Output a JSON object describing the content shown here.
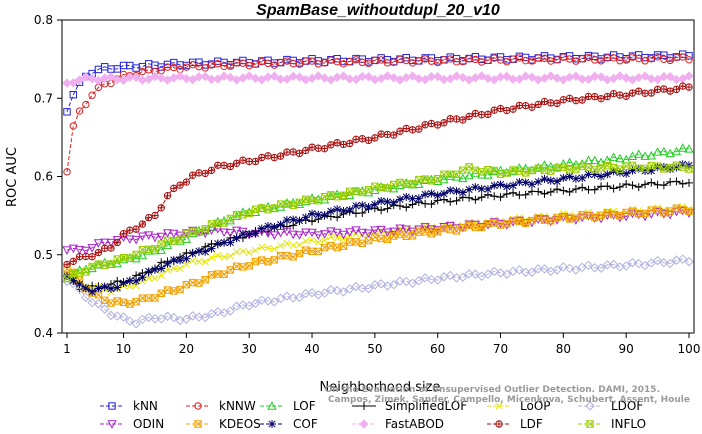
{
  "chart_data": {
    "type": "line",
    "title": "SpamBase_withoutdupl_20_v10",
    "xlabel": "Neighborhood size",
    "ylabel": "ROC AUC",
    "xlim": [
      1,
      100
    ],
    "ylim": [
      0.4,
      0.8
    ],
    "xticks": [
      1,
      10,
      20,
      30,
      40,
      50,
      60,
      70,
      80,
      90,
      100
    ],
    "yticks": [
      0.4,
      0.5,
      0.6,
      0.7,
      0.8
    ],
    "grid": false,
    "legend_position": "bottom",
    "watermark": "Campos, Zimek, Sander, Campello, Micenkova, Schubert, Assent, Houle. On the Evaluation of Unsupervised Outlier Detection. DAMI, 2015.",
    "watermark_lines": [
      "Campos, Zimek, Sander, Campello, Micenkova, Schubert, Assent, Houle",
      "On the Evaluation of Unsupervised Outlier Detection. DAMI, 2015."
    ],
    "series": [
      {
        "name": "kNN",
        "color": "#2222dd",
        "marker": "square",
        "dash": "4,2",
        "anchors": [
          [
            1,
            0.685
          ],
          [
            2,
            0.705
          ],
          [
            3,
            0.718
          ],
          [
            4,
            0.728
          ],
          [
            5,
            0.734
          ],
          [
            7,
            0.738
          ],
          [
            10,
            0.74
          ],
          [
            15,
            0.742
          ],
          [
            20,
            0.744
          ],
          [
            30,
            0.746
          ],
          [
            40,
            0.748
          ],
          [
            50,
            0.749
          ],
          [
            60,
            0.75
          ],
          [
            70,
            0.751
          ],
          [
            80,
            0.752
          ],
          [
            90,
            0.753
          ],
          [
            100,
            0.754
          ]
        ]
      },
      {
        "name": "kNNW",
        "color": "#dd2222",
        "marker": "circle",
        "dash": "4,2",
        "anchors": [
          [
            1,
            0.608
          ],
          [
            2,
            0.663
          ],
          [
            3,
            0.682
          ],
          [
            4,
            0.694
          ],
          [
            5,
            0.705
          ],
          [
            7,
            0.718
          ],
          [
            10,
            0.728
          ],
          [
            15,
            0.736
          ],
          [
            20,
            0.74
          ],
          [
            30,
            0.744
          ],
          [
            40,
            0.746
          ],
          [
            50,
            0.747
          ],
          [
            60,
            0.748
          ],
          [
            70,
            0.749
          ],
          [
            80,
            0.75
          ],
          [
            90,
            0.75
          ],
          [
            100,
            0.751
          ]
        ]
      },
      {
        "name": "LOF",
        "color": "#22cc22",
        "marker": "triangle-up",
        "dash": "4,2",
        "anchors": [
          [
            1,
            0.472
          ],
          [
            3,
            0.478
          ],
          [
            5,
            0.485
          ],
          [
            10,
            0.492
          ],
          [
            15,
            0.505
          ],
          [
            20,
            0.522
          ],
          [
            25,
            0.54
          ],
          [
            30,
            0.555
          ],
          [
            40,
            0.57
          ],
          [
            50,
            0.583
          ],
          [
            60,
            0.596
          ],
          [
            70,
            0.606
          ],
          [
            80,
            0.615
          ],
          [
            90,
            0.624
          ],
          [
            100,
            0.635
          ]
        ]
      },
      {
        "name": "SimplifiedLOF",
        "color": "#000000",
        "marker": "plus",
        "dash": "",
        "anchors": [
          [
            1,
            0.472
          ],
          [
            3,
            0.458
          ],
          [
            5,
            0.458
          ],
          [
            8,
            0.462
          ],
          [
            10,
            0.466
          ],
          [
            13,
            0.475
          ],
          [
            16,
            0.488
          ],
          [
            20,
            0.5
          ],
          [
            25,
            0.515
          ],
          [
            30,
            0.526
          ],
          [
            40,
            0.545
          ],
          [
            50,
            0.558
          ],
          [
            60,
            0.568
          ],
          [
            70,
            0.576
          ],
          [
            80,
            0.582
          ],
          [
            90,
            0.588
          ],
          [
            100,
            0.593
          ]
        ]
      },
      {
        "name": "LoOP",
        "color": "#e6e600",
        "marker": "cross",
        "dash": "4,2",
        "anchors": [
          [
            1,
            0.478
          ],
          [
            3,
            0.465
          ],
          [
            5,
            0.458
          ],
          [
            8,
            0.455
          ],
          [
            10,
            0.458
          ],
          [
            13,
            0.465
          ],
          [
            16,
            0.475
          ],
          [
            20,
            0.488
          ],
          [
            25,
            0.497
          ],
          [
            30,
            0.505
          ],
          [
            40,
            0.517
          ],
          [
            50,
            0.528
          ],
          [
            60,
            0.536
          ],
          [
            70,
            0.543
          ],
          [
            80,
            0.55
          ],
          [
            90,
            0.555
          ],
          [
            100,
            0.56
          ]
        ]
      },
      {
        "name": "LDOF",
        "color": "#b0b0e0",
        "marker": "diamond",
        "dash": "4,2",
        "anchors": [
          [
            1,
            0.468
          ],
          [
            3,
            0.455
          ],
          [
            5,
            0.44
          ],
          [
            8,
            0.425
          ],
          [
            10,
            0.418
          ],
          [
            12,
            0.414
          ],
          [
            15,
            0.42
          ],
          [
            20,
            0.418
          ],
          [
            25,
            0.425
          ],
          [
            30,
            0.437
          ],
          [
            40,
            0.45
          ],
          [
            50,
            0.46
          ],
          [
            60,
            0.47
          ],
          [
            70,
            0.477
          ],
          [
            80,
            0.482
          ],
          [
            90,
            0.487
          ],
          [
            100,
            0.493
          ]
        ]
      },
      {
        "name": "ODIN",
        "color": "#aa22cc",
        "marker": "triangle-down",
        "dash": "4,2",
        "anchors": [
          [
            1,
            0.508
          ],
          [
            3,
            0.505
          ],
          [
            5,
            0.51
          ],
          [
            8,
            0.518
          ],
          [
            10,
            0.52
          ],
          [
            15,
            0.524
          ],
          [
            20,
            0.528
          ],
          [
            25,
            0.531
          ],
          [
            30,
            0.528
          ],
          [
            40,
            0.527
          ],
          [
            50,
            0.53
          ],
          [
            60,
            0.534
          ],
          [
            70,
            0.54
          ],
          [
            80,
            0.546
          ],
          [
            90,
            0.55
          ],
          [
            100,
            0.555
          ]
        ]
      },
      {
        "name": "KDEOS",
        "color": "#f2a000",
        "marker": "box-x",
        "dash": "4,2",
        "anchors": [
          [
            1,
            0.482
          ],
          [
            3,
            0.468
          ],
          [
            5,
            0.45
          ],
          [
            8,
            0.44
          ],
          [
            10,
            0.438
          ],
          [
            13,
            0.442
          ],
          [
            16,
            0.45
          ],
          [
            20,
            0.46
          ],
          [
            25,
            0.475
          ],
          [
            30,
            0.488
          ],
          [
            40,
            0.505
          ],
          [
            50,
            0.52
          ],
          [
            60,
            0.53
          ],
          [
            70,
            0.54
          ],
          [
            80,
            0.547
          ],
          [
            90,
            0.553
          ],
          [
            100,
            0.558
          ]
        ]
      },
      {
        "name": "COF",
        "color": "#000066",
        "marker": "star",
        "dash": "4,2",
        "anchors": [
          [
            1,
            0.475
          ],
          [
            3,
            0.46
          ],
          [
            5,
            0.455
          ],
          [
            8,
            0.458
          ],
          [
            10,
            0.462
          ],
          [
            13,
            0.472
          ],
          [
            16,
            0.485
          ],
          [
            20,
            0.497
          ],
          [
            25,
            0.512
          ],
          [
            30,
            0.527
          ],
          [
            35,
            0.54
          ],
          [
            40,
            0.55
          ],
          [
            50,
            0.565
          ],
          [
            60,
            0.578
          ],
          [
            70,
            0.588
          ],
          [
            80,
            0.597
          ],
          [
            90,
            0.606
          ],
          [
            100,
            0.614
          ]
        ]
      },
      {
        "name": "FastABOD",
        "color": "#f0b0f0",
        "marker": "diamond-filled",
        "dash": "4,2",
        "anchors": [
          [
            1,
            0.718
          ],
          [
            2,
            0.722
          ],
          [
            3,
            0.724
          ],
          [
            5,
            0.725
          ],
          [
            10,
            0.725
          ],
          [
            20,
            0.726
          ],
          [
            30,
            0.726
          ],
          [
            40,
            0.726
          ],
          [
            50,
            0.726
          ],
          [
            60,
            0.726
          ],
          [
            70,
            0.726
          ],
          [
            80,
            0.726
          ],
          [
            90,
            0.726
          ],
          [
            100,
            0.726
          ]
        ]
      },
      {
        "name": "LDF",
        "color": "#aa1111",
        "marker": "circle-plus",
        "dash": "4,2",
        "anchors": [
          [
            1,
            0.49
          ],
          [
            2,
            0.492
          ],
          [
            4,
            0.498
          ],
          [
            6,
            0.502
          ],
          [
            8,
            0.51
          ],
          [
            10,
            0.525
          ],
          [
            12,
            0.535
          ],
          [
            15,
            0.55
          ],
          [
            17,
            0.575
          ],
          [
            19,
            0.59
          ],
          [
            21,
            0.6
          ],
          [
            25,
            0.612
          ],
          [
            30,
            0.62
          ],
          [
            40,
            0.635
          ],
          [
            50,
            0.65
          ],
          [
            60,
            0.668
          ],
          [
            70,
            0.685
          ],
          [
            80,
            0.697
          ],
          [
            90,
            0.705
          ],
          [
            100,
            0.714
          ]
        ]
      },
      {
        "name": "INFLO",
        "color": "#99cc00",
        "marker": "box-x",
        "dash": "4,2",
        "anchors": [
          [
            1,
            0.47
          ],
          [
            3,
            0.477
          ],
          [
            5,
            0.484
          ],
          [
            8,
            0.49
          ],
          [
            10,
            0.495
          ],
          [
            15,
            0.51
          ],
          [
            20,
            0.525
          ],
          [
            25,
            0.54
          ],
          [
            30,
            0.555
          ],
          [
            40,
            0.57
          ],
          [
            50,
            0.585
          ],
          [
            60,
            0.598
          ],
          [
            65,
            0.61
          ],
          [
            70,
            0.605
          ],
          [
            80,
            0.61
          ],
          [
            90,
            0.612
          ],
          [
            100,
            0.612
          ]
        ]
      }
    ]
  }
}
